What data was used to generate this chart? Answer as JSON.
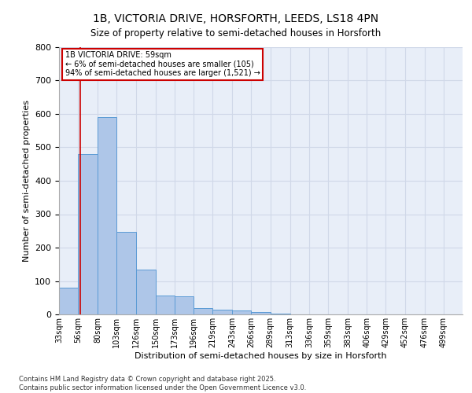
{
  "title_line1": "1B, VICTORIA DRIVE, HORSFORTH, LEEDS, LS18 4PN",
  "title_line2": "Size of property relative to semi-detached houses in Horsforth",
  "xlabel": "Distribution of semi-detached houses by size in Horsforth",
  "ylabel": "Number of semi-detached properties",
  "bins": [
    "33sqm",
    "56sqm",
    "80sqm",
    "103sqm",
    "126sqm",
    "150sqm",
    "173sqm",
    "196sqm",
    "219sqm",
    "243sqm",
    "266sqm",
    "289sqm",
    "313sqm",
    "336sqm",
    "359sqm",
    "383sqm",
    "406sqm",
    "429sqm",
    "452sqm",
    "476sqm",
    "499sqm"
  ],
  "bin_edges": [
    33,
    56,
    80,
    103,
    126,
    150,
    173,
    196,
    219,
    243,
    266,
    289,
    313,
    336,
    359,
    383,
    406,
    429,
    452,
    476,
    499
  ],
  "values": [
    80,
    480,
    590,
    248,
    133,
    57,
    55,
    20,
    15,
    12,
    8,
    2,
    1,
    1,
    0,
    0,
    0,
    0,
    0,
    0
  ],
  "bar_color": "#aec6e8",
  "bar_edge_color": "#5b9bd5",
  "grid_color": "#d0d8e8",
  "background_color": "#e8eef8",
  "annotation_box_color": "#ffffff",
  "annotation_box_edge": "#cc0000",
  "vline_color": "#cc0000",
  "vline_x": 59,
  "annotation_text_line1": "1B VICTORIA DRIVE: 59sqm",
  "annotation_text_line2": "← 6% of semi-detached houses are smaller (105)",
  "annotation_text_line3": "94% of semi-detached houses are larger (1,521) →",
  "ylim": [
    0,
    800
  ],
  "yticks": [
    0,
    100,
    200,
    300,
    400,
    500,
    600,
    700,
    800
  ],
  "footer_line1": "Contains HM Land Registry data © Crown copyright and database right 2025.",
  "footer_line2": "Contains public sector information licensed under the Open Government Licence v3.0."
}
